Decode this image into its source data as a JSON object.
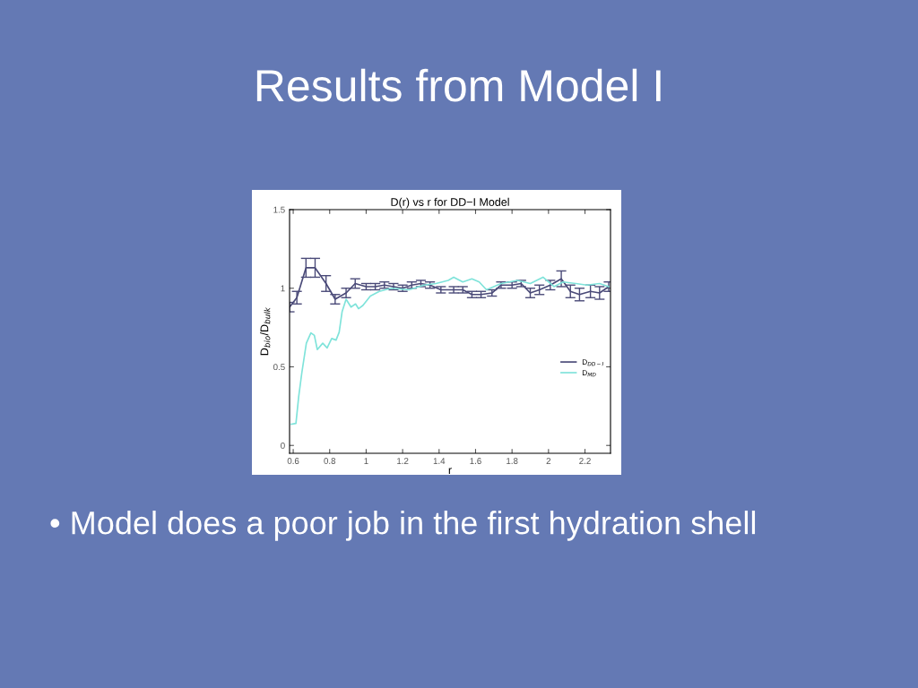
{
  "chart_data": {
    "type": "line",
    "title": "Results from Model I",
    "subtitle": "D(r) vs r for DD−I Model",
    "xlabel": "r",
    "ylabel": "D$_{bio}$/D$_{bulk}$",
    "annotations": [
      "• Model does a poor job in the first hydration shell"
    ],
    "xlim": [
      0.58,
      2.34
    ],
    "ylim": [
      -0.05,
      1.5
    ],
    "xticks": [
      0.6,
      0.8,
      1,
      1.2,
      1.4,
      1.6,
      1.8,
      2,
      2.2
    ],
    "yticks": [
      0,
      0.5,
      1,
      1.5
    ],
    "legend": "right",
    "grid": false,
    "series": [
      {
        "name": "D$_{DD−I}$",
        "color": "#4a4a78",
        "x": [
          0.58,
          0.62,
          0.67,
          0.72,
          0.78,
          0.83,
          0.89,
          0.94,
          1.0,
          1.05,
          1.1,
          1.15,
          1.2,
          1.25,
          1.3,
          1.35,
          1.41,
          1.48,
          1.53,
          1.58,
          1.63,
          1.69,
          1.74,
          1.8,
          1.85,
          1.9,
          1.95,
          2.01,
          2.07,
          2.12,
          2.17,
          2.23,
          2.28,
          2.33
        ],
        "values": [
          0.88,
          0.94,
          1.13,
          1.13,
          1.03,
          0.93,
          0.97,
          1.03,
          1.01,
          1.01,
          1.02,
          1.01,
          1.0,
          1.02,
          1.03,
          1.02,
          0.99,
          0.99,
          0.99,
          0.96,
          0.96,
          0.97,
          1.02,
          1.02,
          1.03,
          0.97,
          0.99,
          1.02,
          1.06,
          0.98,
          0.96,
          0.98,
          0.97,
          1.01
        ],
        "errors": [
          0.03,
          0.04,
          0.06,
          0.06,
          0.05,
          0.03,
          0.03,
          0.03,
          0.02,
          0.02,
          0.02,
          0.02,
          0.02,
          0.02,
          0.02,
          0.02,
          0.02,
          0.02,
          0.02,
          0.02,
          0.02,
          0.02,
          0.02,
          0.02,
          0.02,
          0.03,
          0.03,
          0.03,
          0.05,
          0.04,
          0.04,
          0.04,
          0.04,
          0.03
        ]
      },
      {
        "name": "D$_{MD}$",
        "color": "#7fe3da",
        "x": [
          0.59,
          0.615,
          0.63,
          0.647,
          0.672,
          0.697,
          0.716,
          0.732,
          0.762,
          0.786,
          0.811,
          0.835,
          0.852,
          0.868,
          0.89,
          0.917,
          0.942,
          0.958,
          0.982,
          1.023,
          1.072,
          1.138,
          1.236,
          1.317,
          1.383,
          1.45,
          1.48,
          1.53,
          1.58,
          1.62,
          1.66,
          1.74,
          1.83,
          1.9,
          1.97,
          2.03,
          2.08,
          2.15,
          2.21,
          2.28,
          2.33
        ],
        "values": [
          0.135,
          0.14,
          0.31,
          0.46,
          0.65,
          0.716,
          0.7,
          0.61,
          0.65,
          0.62,
          0.68,
          0.67,
          0.72,
          0.85,
          0.93,
          0.88,
          0.9,
          0.87,
          0.89,
          0.95,
          0.98,
          1.0,
          0.99,
          1.02,
          1.03,
          1.05,
          1.07,
          1.04,
          1.06,
          1.04,
          0.99,
          1.03,
          1.05,
          1.03,
          1.07,
          1.01,
          1.04,
          1.03,
          1.02,
          1.03,
          1.01
        ]
      }
    ]
  }
}
